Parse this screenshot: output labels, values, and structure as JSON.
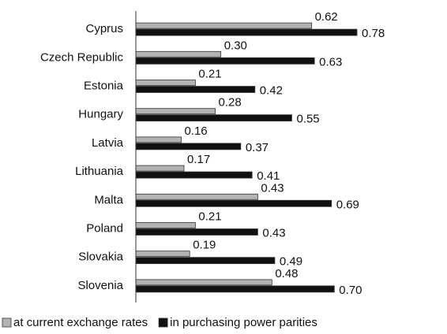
{
  "chart_data": {
    "type": "hbar",
    "categories": [
      "Cyprus",
      "Czech Republic",
      "Estonia",
      "Hungary",
      "Latvia",
      "Lithuania",
      "Malta",
      "Poland",
      "Slovakia",
      "Slovenia"
    ],
    "series": [
      {
        "name": "at current exchange rates",
        "color": "#b3b3b3",
        "values": [
          0.62,
          0.3,
          0.21,
          0.28,
          0.16,
          0.17,
          0.43,
          0.21,
          0.19,
          0.48
        ],
        "value_labels": [
          "0.62",
          "0.30",
          "0.21",
          "0.28",
          "0.16",
          "0.17",
          "0.43",
          "0.21",
          "0.19",
          "0.48"
        ]
      },
      {
        "name": "in purchasing power parities",
        "color": "#111111",
        "values": [
          0.78,
          0.63,
          0.42,
          0.55,
          0.37,
          0.41,
          0.69,
          0.43,
          0.49,
          0.7
        ],
        "value_labels": [
          "0.78",
          "0.63",
          "0.42",
          "0.55",
          "0.37",
          "0.41",
          "0.69",
          "0.43",
          "0.49",
          "0.70"
        ]
      }
    ],
    "xlim": [
      0,
      1
    ],
    "legend": "bottom"
  }
}
